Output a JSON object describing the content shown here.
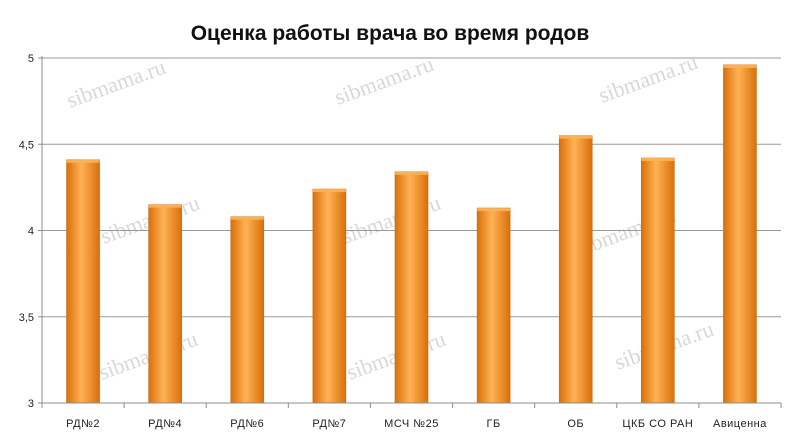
{
  "chart_data": {
    "type": "bar",
    "title": "Оценка работы врача во время родов",
    "xlabel": "",
    "ylabel": "",
    "categories": [
      "РД№2",
      "РД№4",
      "РД№6",
      "РД№7",
      "МСЧ №25",
      "ГБ",
      "ОБ",
      "ЦКБ СО РАН",
      "Авиценна"
    ],
    "values": [
      4.41,
      4.15,
      4.08,
      4.24,
      4.34,
      4.13,
      4.55,
      4.42,
      4.96
    ],
    "ylim": [
      3,
      5
    ],
    "yticks": [
      "3",
      "3,5",
      "4",
      "4,5",
      "5"
    ],
    "grid": true,
    "legend": "none",
    "colors": {
      "bar_light": "#ffb255",
      "bar_mid": "#f8951d",
      "bar_dark": "#d9700a"
    }
  },
  "watermark": "sibmama.ru"
}
